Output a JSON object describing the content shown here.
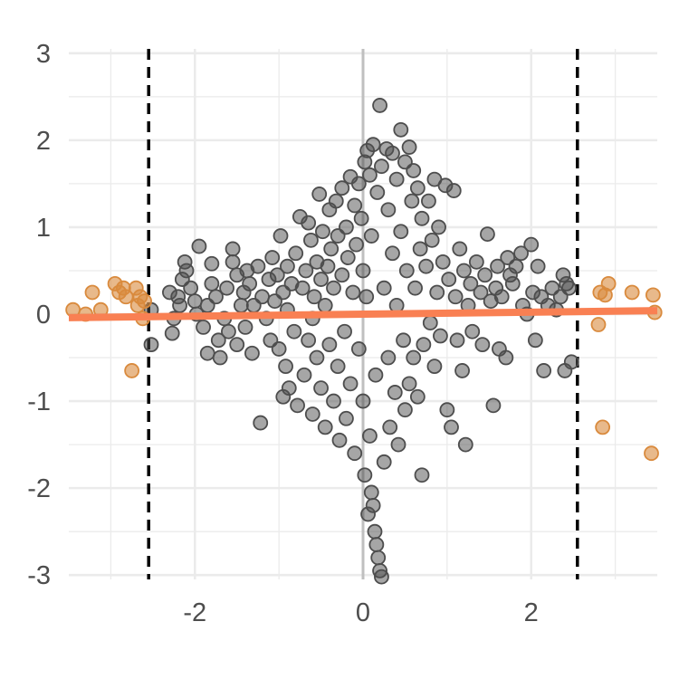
{
  "chart_data": {
    "type": "scatter",
    "title": "",
    "xlabel": "",
    "ylabel": "",
    "xlim": [
      -3.5,
      3.5
    ],
    "ylim": [
      -3.05,
      3.05
    ],
    "grid": true,
    "x_ticks": [
      -2,
      0,
      2
    ],
    "x_tick_labels": [
      "-2",
      "0",
      "2"
    ],
    "y_ticks": [
      -3,
      -2,
      -1,
      0,
      1,
      2,
      3
    ],
    "y_tick_labels": [
      "-3",
      "-2",
      "-1",
      "0",
      "1",
      "2",
      "3"
    ],
    "cutoff_lines": [
      -2.55,
      2.55
    ],
    "zero_line_x": 0,
    "fit_line": {
      "x": [
        -3.5,
        3.5
      ],
      "y": [
        -0.04,
        0.04
      ],
      "color": "#f98053"
    },
    "colors": {
      "inlier": "#4d4d4d",
      "outlier": "#d98a3d",
      "fit": "#f98053",
      "cutoff": "#000000",
      "zero_line": "#bfbfbf",
      "grid": "#ebebeb"
    },
    "series": [
      {
        "role": "inliers",
        "points": [
          [
            -2.52,
            0.05
          ],
          [
            -2.52,
            -0.35
          ],
          [
            -2.3,
            0.25
          ],
          [
            -2.27,
            -0.22
          ],
          [
            -2.25,
            -0.05
          ],
          [
            -2.2,
            0.2
          ],
          [
            -2.18,
            0.1
          ],
          [
            -2.15,
            0.4
          ],
          [
            -2.12,
            0.6
          ],
          [
            -2.1,
            0.5
          ],
          [
            -2.05,
            0.3
          ],
          [
            -2.0,
            0.15
          ],
          [
            -1.98,
            0.0
          ],
          [
            -1.95,
            0.78
          ],
          [
            -1.9,
            -0.15
          ],
          [
            -1.85,
            0.1
          ],
          [
            -1.85,
            -0.45
          ],
          [
            -1.8,
            0.35
          ],
          [
            -1.8,
            0.58
          ],
          [
            -1.75,
            0.2
          ],
          [
            -1.72,
            -0.3
          ],
          [
            -1.7,
            -0.5
          ],
          [
            -1.65,
            -0.05
          ],
          [
            -1.62,
            0.3
          ],
          [
            -1.6,
            -0.2
          ],
          [
            -1.55,
            0.6
          ],
          [
            -1.55,
            0.75
          ],
          [
            -1.5,
            0.45
          ],
          [
            -1.5,
            -0.35
          ],
          [
            -1.45,
            0.1
          ],
          [
            -1.42,
            0.25
          ],
          [
            -1.4,
            -0.15
          ],
          [
            -1.38,
            0.5
          ],
          [
            -1.35,
            0.35
          ],
          [
            -1.32,
            -0.45
          ],
          [
            -1.3,
            0.1
          ],
          [
            -1.25,
            0.55
          ],
          [
            -1.22,
            -1.25
          ],
          [
            -1.2,
            0.2
          ],
          [
            -1.15,
            -0.05
          ],
          [
            -1.12,
            0.4
          ],
          [
            -1.1,
            -0.3
          ],
          [
            -1.08,
            0.65
          ],
          [
            -1.05,
            0.15
          ],
          [
            -1.02,
            0.45
          ],
          [
            -1.0,
            -0.4
          ],
          [
            -0.98,
            0.9
          ],
          [
            -0.95,
            0.25
          ],
          [
            -0.95,
            -0.95
          ],
          [
            -0.92,
            -0.6
          ],
          [
            -0.9,
            0.05
          ],
          [
            -0.9,
            0.55
          ],
          [
            -0.88,
            -0.85
          ],
          [
            -0.85,
            0.35
          ],
          [
            -0.82,
            -0.2
          ],
          [
            -0.8,
            0.7
          ],
          [
            -0.78,
            -1.05
          ],
          [
            -0.75,
            1.12
          ],
          [
            -0.72,
            0.3
          ],
          [
            -0.7,
            -0.7
          ],
          [
            -0.68,
            0.5
          ],
          [
            -0.65,
            -0.3
          ],
          [
            -0.65,
            1.05
          ],
          [
            -0.62,
            0.85
          ],
          [
            -0.6,
            -0.05
          ],
          [
            -0.6,
            -1.15
          ],
          [
            -0.58,
            0.2
          ],
          [
            -0.55,
            0.6
          ],
          [
            -0.55,
            -0.5
          ],
          [
            -0.52,
            1.38
          ],
          [
            -0.5,
            0.4
          ],
          [
            -0.5,
            -0.85
          ],
          [
            -0.48,
            0.95
          ],
          [
            -0.45,
            0.1
          ],
          [
            -0.45,
            -1.3
          ],
          [
            -0.42,
            0.55
          ],
          [
            -0.4,
            -0.35
          ],
          [
            -0.4,
            1.2
          ],
          [
            -0.38,
            0.75
          ],
          [
            -0.35,
            -1.0
          ],
          [
            -0.35,
            0.3
          ],
          [
            -0.32,
            1.3
          ],
          [
            -0.3,
            -0.6
          ],
          [
            -0.3,
            0.9
          ],
          [
            -0.28,
            -1.45
          ],
          [
            -0.25,
            0.45
          ],
          [
            -0.25,
            1.45
          ],
          [
            -0.22,
            -0.2
          ],
          [
            -0.2,
            1.0
          ],
          [
            -0.2,
            -1.2
          ],
          [
            -0.18,
            0.65
          ],
          [
            -0.15,
            1.58
          ],
          [
            -0.15,
            -0.8
          ],
          [
            -0.12,
            0.25
          ],
          [
            -0.1,
            1.25
          ],
          [
            -0.1,
            -1.6
          ],
          [
            -0.08,
            0.8
          ],
          [
            -0.05,
            1.5
          ],
          [
            -0.05,
            -0.4
          ],
          [
            -0.02,
            1.1
          ],
          [
            0.0,
            0.5
          ],
          [
            0.0,
            -1.0
          ],
          [
            0.02,
            1.75
          ],
          [
            0.02,
            -1.85
          ],
          [
            0.04,
            0.2
          ],
          [
            0.05,
            1.88
          ],
          [
            0.06,
            -2.3
          ],
          [
            0.08,
            -1.4
          ],
          [
            0.08,
            1.6
          ],
          [
            0.1,
            -2.05
          ],
          [
            0.1,
            0.9
          ],
          [
            0.12,
            -2.2
          ],
          [
            0.12,
            1.95
          ],
          [
            0.14,
            -2.5
          ],
          [
            0.15,
            -0.7
          ],
          [
            0.16,
            -2.65
          ],
          [
            0.17,
            1.4
          ],
          [
            0.18,
            -2.8
          ],
          [
            0.2,
            -2.95
          ],
          [
            0.2,
            2.4
          ],
          [
            0.22,
            -3.02
          ],
          [
            0.22,
            1.7
          ],
          [
            0.25,
            0.3
          ],
          [
            0.25,
            -1.7
          ],
          [
            0.28,
            1.9
          ],
          [
            0.3,
            -0.5
          ],
          [
            0.3,
            1.2
          ],
          [
            0.32,
            -1.3
          ],
          [
            0.35,
            1.85
          ],
          [
            0.35,
            0.7
          ],
          [
            0.38,
            -0.9
          ],
          [
            0.4,
            1.55
          ],
          [
            0.4,
            0.1
          ],
          [
            0.42,
            -1.5
          ],
          [
            0.45,
            2.12
          ],
          [
            0.45,
            0.95
          ],
          [
            0.48,
            -0.3
          ],
          [
            0.5,
            1.75
          ],
          [
            0.5,
            -1.1
          ],
          [
            0.52,
            0.5
          ],
          [
            0.55,
            1.92
          ],
          [
            0.55,
            -0.8
          ],
          [
            0.58,
            1.3
          ],
          [
            0.6,
            -0.5
          ],
          [
            0.6,
            1.65
          ],
          [
            0.62,
            0.3
          ],
          [
            0.65,
            -0.95
          ],
          [
            0.65,
            1.45
          ],
          [
            0.68,
            0.75
          ],
          [
            0.7,
            -1.85
          ],
          [
            0.7,
            1.1
          ],
          [
            0.72,
            -0.35
          ],
          [
            0.75,
            0.55
          ],
          [
            0.78,
            1.3
          ],
          [
            0.8,
            -0.1
          ],
          [
            0.82,
            0.85
          ],
          [
            0.85,
            -0.6
          ],
          [
            0.85,
            1.55
          ],
          [
            0.88,
            0.25
          ],
          [
            0.9,
            1.0
          ],
          [
            0.92,
            -0.25
          ],
          [
            0.95,
            0.6
          ],
          [
            0.98,
            1.48
          ],
          [
            1.0,
            -1.1
          ],
          [
            1.02,
            0.4
          ],
          [
            1.05,
            -1.3
          ],
          [
            1.08,
            1.42
          ],
          [
            1.1,
            0.2
          ],
          [
            1.12,
            -0.3
          ],
          [
            1.15,
            0.75
          ],
          [
            1.18,
            -0.65
          ],
          [
            1.2,
            0.5
          ],
          [
            1.22,
            -1.5
          ],
          [
            1.25,
            0.1
          ],
          [
            1.28,
            0.35
          ],
          [
            1.3,
            -0.2
          ],
          [
            1.35,
            0.6
          ],
          [
            1.4,
            0.25
          ],
          [
            1.42,
            -0.35
          ],
          [
            1.45,
            0.45
          ],
          [
            1.48,
            0.92
          ],
          [
            1.52,
            0.15
          ],
          [
            1.55,
            -1.05
          ],
          [
            1.58,
            0.3
          ],
          [
            1.6,
            0.55
          ],
          [
            1.62,
            -0.4
          ],
          [
            1.65,
            0.2
          ],
          [
            1.7,
            -0.5
          ],
          [
            1.72,
            0.65
          ],
          [
            1.75,
            0.45
          ],
          [
            1.78,
            0.35
          ],
          [
            1.82,
            0.55
          ],
          [
            1.88,
            0.7
          ],
          [
            1.9,
            0.1
          ],
          [
            1.95,
            0.0
          ],
          [
            2.0,
            0.8
          ],
          [
            2.02,
            0.25
          ],
          [
            2.05,
            -0.3
          ],
          [
            2.08,
            0.55
          ],
          [
            2.12,
            0.2
          ],
          [
            2.15,
            -0.65
          ],
          [
            2.2,
            0.1
          ],
          [
            2.25,
            0.3
          ],
          [
            2.3,
            0.05
          ],
          [
            2.35,
            0.2
          ],
          [
            2.38,
            0.45
          ],
          [
            2.4,
            -0.65
          ],
          [
            2.42,
            0.35
          ],
          [
            2.45,
            0.3
          ],
          [
            2.48,
            -0.55
          ]
        ]
      },
      {
        "role": "outliers",
        "points": [
          [
            -3.45,
            0.05
          ],
          [
            -3.3,
            0.0
          ],
          [
            -3.22,
            0.25
          ],
          [
            -3.12,
            0.05
          ],
          [
            -2.95,
            0.35
          ],
          [
            -2.9,
            0.25
          ],
          [
            -2.85,
            0.3
          ],
          [
            -2.82,
            0.2
          ],
          [
            -2.75,
            -0.65
          ],
          [
            -2.7,
            0.3
          ],
          [
            -2.68,
            0.1
          ],
          [
            -2.65,
            0.2
          ],
          [
            -2.62,
            -0.05
          ],
          [
            -2.6,
            0.15
          ],
          [
            2.8,
            -0.12
          ],
          [
            2.82,
            0.25
          ],
          [
            2.85,
            -1.3
          ],
          [
            2.88,
            0.22
          ],
          [
            2.92,
            0.35
          ],
          [
            3.2,
            0.25
          ],
          [
            3.43,
            -1.6
          ],
          [
            3.45,
            0.22
          ],
          [
            3.47,
            0.02
          ]
        ]
      }
    ]
  }
}
